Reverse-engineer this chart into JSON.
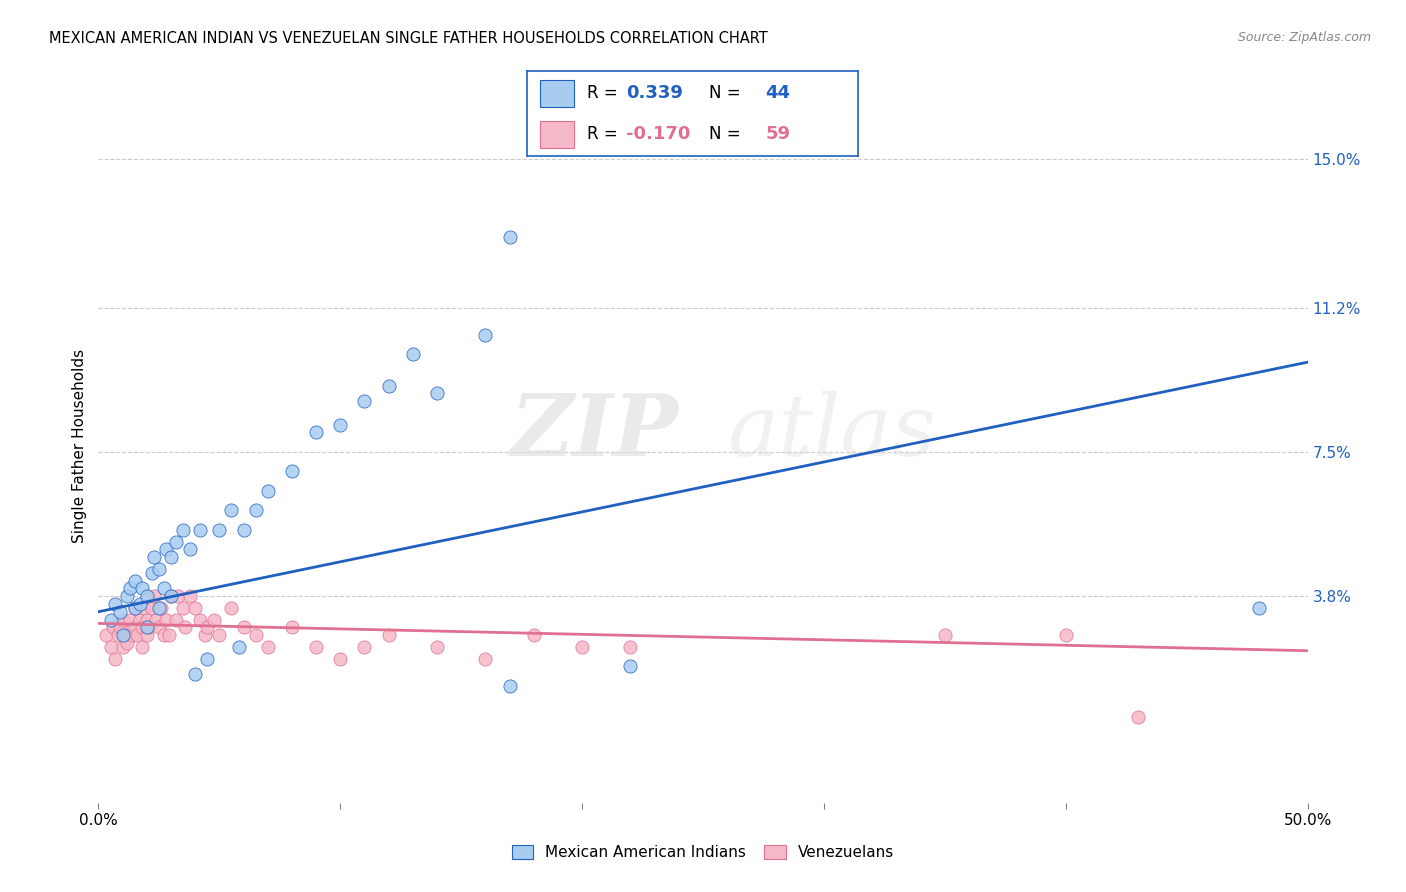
{
  "title": "MEXICAN AMERICAN INDIAN VS VENEZUELAN SINGLE FATHER HOUSEHOLDS CORRELATION CHART",
  "source": "Source: ZipAtlas.com",
  "ylabel": "Single Father Households",
  "ytick_labels": [
    "3.8%",
    "7.5%",
    "11.2%",
    "15.0%"
  ],
  "ytick_values": [
    0.038,
    0.075,
    0.112,
    0.15
  ],
  "xlim": [
    0.0,
    0.5
  ],
  "ylim": [
    -0.015,
    0.168
  ],
  "blue_R": "0.339",
  "blue_N": "44",
  "pink_R": "-0.170",
  "pink_N": "59",
  "blue_fill_color": "#A8CCF0",
  "pink_fill_color": "#F5B8C8",
  "blue_line_color": "#2060C0",
  "pink_line_color": "#E07090",
  "legend_label_blue": "Mexican American Indians",
  "legend_label_pink": "Venezuelans",
  "watermark_zip": "ZIP",
  "watermark_atlas": "atlas",
  "blue_scatter_x": [
    0.005,
    0.007,
    0.009,
    0.01,
    0.012,
    0.013,
    0.015,
    0.015,
    0.017,
    0.018,
    0.02,
    0.02,
    0.022,
    0.023,
    0.025,
    0.025,
    0.027,
    0.028,
    0.03,
    0.03,
    0.032,
    0.035,
    0.038,
    0.04,
    0.042,
    0.045,
    0.05,
    0.055,
    0.058,
    0.06,
    0.065,
    0.07,
    0.08,
    0.09,
    0.1,
    0.11,
    0.12,
    0.13,
    0.14,
    0.16,
    0.17,
    0.22,
    0.48,
    0.17
  ],
  "blue_scatter_y": [
    0.032,
    0.036,
    0.034,
    0.028,
    0.038,
    0.04,
    0.035,
    0.042,
    0.036,
    0.04,
    0.03,
    0.038,
    0.044,
    0.048,
    0.035,
    0.045,
    0.04,
    0.05,
    0.038,
    0.048,
    0.052,
    0.055,
    0.05,
    0.018,
    0.055,
    0.022,
    0.055,
    0.06,
    0.025,
    0.055,
    0.06,
    0.065,
    0.07,
    0.08,
    0.082,
    0.088,
    0.092,
    0.1,
    0.09,
    0.105,
    0.015,
    0.02,
    0.035,
    0.13
  ],
  "pink_scatter_x": [
    0.003,
    0.005,
    0.006,
    0.007,
    0.008,
    0.009,
    0.01,
    0.01,
    0.011,
    0.012,
    0.013,
    0.014,
    0.015,
    0.015,
    0.016,
    0.017,
    0.018,
    0.018,
    0.019,
    0.02,
    0.02,
    0.021,
    0.022,
    0.023,
    0.024,
    0.025,
    0.026,
    0.027,
    0.028,
    0.029,
    0.03,
    0.032,
    0.033,
    0.035,
    0.036,
    0.038,
    0.04,
    0.042,
    0.044,
    0.045,
    0.048,
    0.05,
    0.055,
    0.06,
    0.065,
    0.07,
    0.08,
    0.09,
    0.1,
    0.11,
    0.12,
    0.14,
    0.16,
    0.18,
    0.2,
    0.22,
    0.35,
    0.4,
    0.43
  ],
  "pink_scatter_y": [
    0.028,
    0.025,
    0.03,
    0.022,
    0.028,
    0.03,
    0.025,
    0.032,
    0.028,
    0.026,
    0.032,
    0.028,
    0.03,
    0.035,
    0.028,
    0.032,
    0.025,
    0.03,
    0.035,
    0.028,
    0.032,
    0.03,
    0.035,
    0.038,
    0.032,
    0.03,
    0.035,
    0.028,
    0.032,
    0.028,
    0.038,
    0.032,
    0.038,
    0.035,
    0.03,
    0.038,
    0.035,
    0.032,
    0.028,
    0.03,
    0.032,
    0.028,
    0.035,
    0.03,
    0.028,
    0.025,
    0.03,
    0.025,
    0.022,
    0.025,
    0.028,
    0.025,
    0.022,
    0.028,
    0.025,
    0.025,
    0.028,
    0.028,
    0.007
  ],
  "blue_trend_start_y": 0.034,
  "blue_trend_end_y": 0.098,
  "pink_trend_start_y": 0.031,
  "pink_trend_end_y": 0.024,
  "background_color": "#FFFFFF",
  "grid_color": "#CCCCCC"
}
